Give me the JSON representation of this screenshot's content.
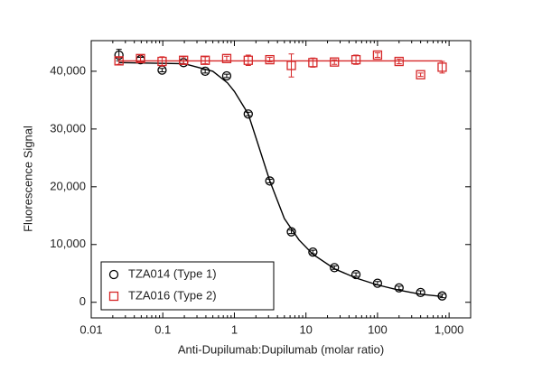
{
  "chart_data": {
    "type": "scatter",
    "xlabel": "Anti-Dupilumab:Dupilumab (molar ratio)",
    "ylabel": "Fluorescence Signal",
    "log_x": true,
    "xlim": [
      0.01,
      2000
    ],
    "xticks": [
      0.01,
      0.1,
      1,
      10,
      100,
      {
        "value": 1000,
        "label": "1,000"
      }
    ],
    "ylim": [
      -2700,
      45300
    ],
    "yticks": [
      0,
      {
        "value": 10000,
        "label": "10,000"
      },
      {
        "value": 20000,
        "label": "20,000"
      },
      {
        "value": 30000,
        "label": "30,000"
      },
      {
        "value": 40000,
        "label": "40,000"
      }
    ],
    "legend": "lower left",
    "x": [
      0.0244,
      0.0488,
      0.0977,
      0.195,
      0.391,
      0.781,
      1.5625,
      3.125,
      6.25,
      12.5,
      25,
      50,
      100,
      200,
      400,
      800
    ],
    "series": [
      {
        "name": "TZA014 (Type 1)",
        "color": "#000000",
        "marker": "circle",
        "values": [
          42800,
          42000,
          40200,
          41500,
          40000,
          39200,
          32600,
          21000,
          12200,
          8700,
          6000,
          4800,
          3300,
          2500,
          1700,
          1100
        ],
        "errors": [
          1000,
          400,
          300,
          300,
          300,
          300,
          300,
          300,
          300,
          300,
          300,
          300,
          300,
          300,
          300,
          300
        ],
        "fit_x": [
          0.0244,
          0.2,
          0.5,
          0.8,
          1,
          1.5625,
          2,
          3.125,
          5,
          8,
          12.5,
          25,
          50,
          100,
          200,
          400,
          800
        ],
        "fit_values": [
          41500,
          41300,
          40000,
          38000,
          36500,
          32600,
          28500,
          21000,
          14500,
          10800,
          8300,
          5800,
          4200,
          3000,
          2100,
          1400,
          1000
        ]
      },
      {
        "name": "TZA016 (Type 2)",
        "color": "#d62728",
        "marker": "square",
        "values": [
          41800,
          42200,
          41700,
          41900,
          41900,
          42200,
          41900,
          42000,
          41000,
          41500,
          41600,
          42000,
          42800,
          41700,
          39400,
          40700
        ],
        "errors": [
          600,
          600,
          800,
          600,
          600,
          400,
          900,
          400,
          2000,
          800,
          400,
          800,
          400,
          400,
          300,
          1000
        ],
        "fit_x": [
          0.0244,
          800
        ],
        "fit_values": [
          41800,
          41800
        ]
      }
    ]
  }
}
